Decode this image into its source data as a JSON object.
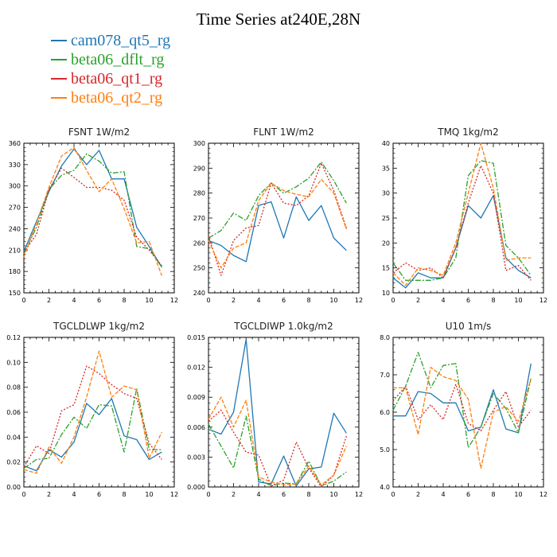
{
  "title": "Time Series at240E,28N",
  "colors": {
    "cam078_qt5_rg": "#1f77b4",
    "beta06_dflt_rg": "#2ca02c",
    "beta06_qt1_rg": "#d62728",
    "beta06_qt2_rg": "#ff7f0e"
  },
  "legend": [
    {
      "name": "cam078_qt5_rg",
      "color": "#1f77b4"
    },
    {
      "name": "beta06_dflt_rg",
      "color": "#2ca02c"
    },
    {
      "name": "beta06_qt1_rg",
      "color": "#d62728"
    },
    {
      "name": "beta06_qt2_rg",
      "color": "#ff7f0e"
    }
  ],
  "chart_data": [
    {
      "type": "line",
      "title": "FSNT   1W/m2",
      "x": [
        0,
        1,
        2,
        3,
        4,
        5,
        6,
        7,
        8,
        9,
        10,
        11
      ],
      "xlim": [
        0,
        12
      ],
      "xticks": [
        "0",
        "2",
        "4",
        "6",
        "8",
        "10",
        "12"
      ],
      "ylim": [
        150,
        360
      ],
      "yticks": [
        "150",
        "180",
        "210",
        "240",
        "270",
        "300",
        "330",
        "360"
      ],
      "series": [
        {
          "name": "cam078_qt5_rg",
          "values": [
            208,
            250,
            292,
            328,
            352,
            330,
            350,
            310,
            310,
            242,
            215,
            186
          ]
        },
        {
          "name": "beta06_dflt_rg",
          "values": [
            205,
            242,
            295,
            315,
            322,
            345,
            335,
            318,
            320,
            215,
            212,
            186
          ]
        },
        {
          "name": "beta06_qt1_rg",
          "values": [
            207,
            232,
            295,
            325,
            312,
            298,
            298,
            294,
            280,
            228,
            210,
            188
          ]
        },
        {
          "name": "beta06_qt2_rg",
          "values": [
            200,
            248,
            298,
            342,
            354,
            322,
            292,
            310,
            268,
            220,
            222,
            174
          ]
        }
      ]
    },
    {
      "type": "line",
      "title": "FLNT   1W/m2",
      "x": [
        0,
        1,
        2,
        3,
        4,
        5,
        6,
        7,
        8,
        9,
        10,
        11
      ],
      "xlim": [
        0,
        12
      ],
      "xticks": [
        "0",
        "2",
        "4",
        "6",
        "8",
        "10",
        "12"
      ],
      "ylim": [
        240,
        300
      ],
      "yticks": [
        "240",
        "250",
        "260",
        "270",
        "280",
        "290",
        "300"
      ],
      "series": [
        {
          "name": "cam078_qt5_rg",
          "values": [
            261,
            259,
            255,
            252.5,
            275,
            276.5,
            262,
            278.5,
            269,
            275,
            262,
            257
          ]
        },
        {
          "name": "beta06_dflt_rg",
          "values": [
            262,
            265,
            272,
            269,
            279,
            284,
            280,
            282.5,
            286,
            292.5,
            285,
            276
          ]
        },
        {
          "name": "beta06_qt1_rg",
          "values": [
            263,
            247,
            261,
            266,
            267,
            284,
            276,
            275,
            279,
            292,
            281,
            266
          ]
        },
        {
          "name": "beta06_qt2_rg",
          "values": [
            261,
            250,
            258,
            260,
            277,
            284,
            281,
            279.5,
            278.5,
            285.5,
            280,
            265.5
          ]
        }
      ]
    },
    {
      "type": "line",
      "title": "TMQ   1kg/m2",
      "x": [
        0,
        1,
        2,
        3,
        4,
        5,
        6,
        7,
        8,
        9,
        10,
        11
      ],
      "xlim": [
        0,
        12
      ],
      "xticks": [
        "0",
        "2",
        "4",
        "6",
        "8",
        "10",
        "12"
      ],
      "ylim": [
        10,
        40
      ],
      "yticks": [
        "10",
        "15",
        "20",
        "25",
        "30",
        "35",
        "40"
      ],
      "series": [
        {
          "name": "cam078_qt5_rg",
          "values": [
            13,
            11,
            14,
            13,
            13,
            19,
            27.5,
            25,
            29.5,
            17,
            14.5,
            13
          ]
        },
        {
          "name": "beta06_dflt_rg",
          "values": [
            16,
            12.5,
            12.5,
            12.5,
            13,
            17,
            33.5,
            36.5,
            36,
            19.5,
            17,
            13.5
          ]
        },
        {
          "name": "beta06_qt1_rg",
          "values": [
            14,
            16,
            14.5,
            15,
            13,
            19,
            28,
            35.5,
            30,
            14.5,
            15.5,
            12.5
          ]
        },
        {
          "name": "beta06_qt2_rg",
          "values": [
            14,
            11.5,
            15,
            14.5,
            13.5,
            20,
            30,
            40,
            31,
            16.5,
            17,
            17
          ]
        }
      ]
    },
    {
      "type": "line",
      "title": "TGCLDLWP   1kg/m2",
      "x": [
        0,
        1,
        2,
        3,
        4,
        5,
        6,
        7,
        8,
        9,
        10,
        11
      ],
      "xlim": [
        0,
        12
      ],
      "xticks": [
        "0",
        "2",
        "4",
        "6",
        "8",
        "10",
        "12"
      ],
      "ylim": [
        0,
        0.12
      ],
      "yticks": [
        "0.00",
        "0.02",
        "0.04",
        "0.06",
        "0.08",
        "0.10",
        "0.12"
      ],
      "series": [
        {
          "name": "cam078_qt5_rg",
          "values": [
            0.017,
            0.013,
            0.03,
            0.024,
            0.036,
            0.067,
            0.058,
            0.071,
            0.041,
            0.038,
            0.022,
            0.028
          ]
        },
        {
          "name": "beta06_dflt_rg",
          "values": [
            0.015,
            0.022,
            0.023,
            0.042,
            0.056,
            0.047,
            0.066,
            0.065,
            0.028,
            0.079,
            0.03,
            0.03
          ]
        },
        {
          "name": "beta06_qt1_rg",
          "values": [
            0.016,
            0.033,
            0.027,
            0.061,
            0.066,
            0.097,
            0.091,
            0.082,
            0.075,
            0.071,
            0.035,
            0.022
          ]
        },
        {
          "name": "beta06_qt2_rg",
          "values": [
            0.014,
            0.011,
            0.032,
            0.019,
            0.04,
            0.072,
            0.109,
            0.072,
            0.081,
            0.078,
            0.023,
            0.044
          ]
        }
      ]
    },
    {
      "type": "line",
      "title": "TGCLDIWP   1.0kg/m2",
      "x": [
        0,
        1,
        2,
        3,
        4,
        5,
        6,
        7,
        8,
        9,
        10,
        11
      ],
      "xlim": [
        0,
        12
      ],
      "xticks": [
        "0",
        "2",
        "4",
        "6",
        "8",
        "10",
        "12"
      ],
      "ylim": [
        0,
        0.015
      ],
      "yticks": [
        "0.000",
        "0.003",
        "0.006",
        "0.009",
        "0.012",
        "0.015"
      ],
      "series": [
        {
          "name": "cam078_qt5_rg",
          "values": [
            0.0058,
            0.0053,
            0.0075,
            0.0148,
            0.0005,
            0.0003,
            0.0031,
            0.0001,
            0.0018,
            0.002,
            0.0074,
            0.0054
          ]
        },
        {
          "name": "beta06_dflt_rg",
          "values": [
            0.0063,
            0.0041,
            0.0019,
            0.0071,
            0.0008,
            0.0001,
            0.0004,
            0.0003,
            0.0026,
            0.0001,
            0.0006,
            0.0015
          ]
        },
        {
          "name": "beta06_qt1_rg",
          "values": [
            0.0066,
            0.0077,
            0.0055,
            0.0035,
            0.0032,
            0.0001,
            0.0007,
            0.0045,
            0.0019,
            0,
            0.0012,
            0.0051
          ]
        },
        {
          "name": "beta06_qt2_rg",
          "values": [
            0.0068,
            0.009,
            0.006,
            0.0087,
            0.001,
            0.0005,
            0.0002,
            0.0003,
            0.0021,
            0.0002,
            0.0012,
            0.0041
          ]
        }
      ]
    },
    {
      "type": "line",
      "title": "U10   1m/s",
      "x": [
        0,
        1,
        2,
        3,
        4,
        5,
        6,
        7,
        8,
        9,
        10,
        11
      ],
      "xlim": [
        0,
        12
      ],
      "xticks": [
        "0",
        "2",
        "4",
        "6",
        "8",
        "10",
        "12"
      ],
      "ylim": [
        4,
        8
      ],
      "yticks": [
        "4.0",
        "5.0",
        "6.0",
        "7.0",
        "8.0"
      ],
      "series": [
        {
          "name": "cam078_qt5_rg",
          "values": [
            5.9,
            5.9,
            6.55,
            6.5,
            6.25,
            6.25,
            5.5,
            5.6,
            6.6,
            5.55,
            5.45,
            7.3
          ]
        },
        {
          "name": "beta06_dflt_rg",
          "values": [
            6.05,
            6.7,
            7.6,
            6.65,
            7.25,
            7.3,
            5.05,
            5.6,
            6.5,
            6.1,
            5.45,
            6.9
          ]
        },
        {
          "name": "beta06_qt1_rg",
          "values": [
            6.3,
            6.7,
            5.8,
            6.2,
            5.8,
            6.75,
            5.7,
            5.5,
            6.05,
            6.55,
            5.6,
            6.05
          ]
        },
        {
          "name": "beta06_qt2_rg",
          "values": [
            6.65,
            6.65,
            5.4,
            7.2,
            6.95,
            6.85,
            6.35,
            4.5,
            6.0,
            6.15,
            5.75,
            6.9
          ]
        }
      ]
    }
  ]
}
